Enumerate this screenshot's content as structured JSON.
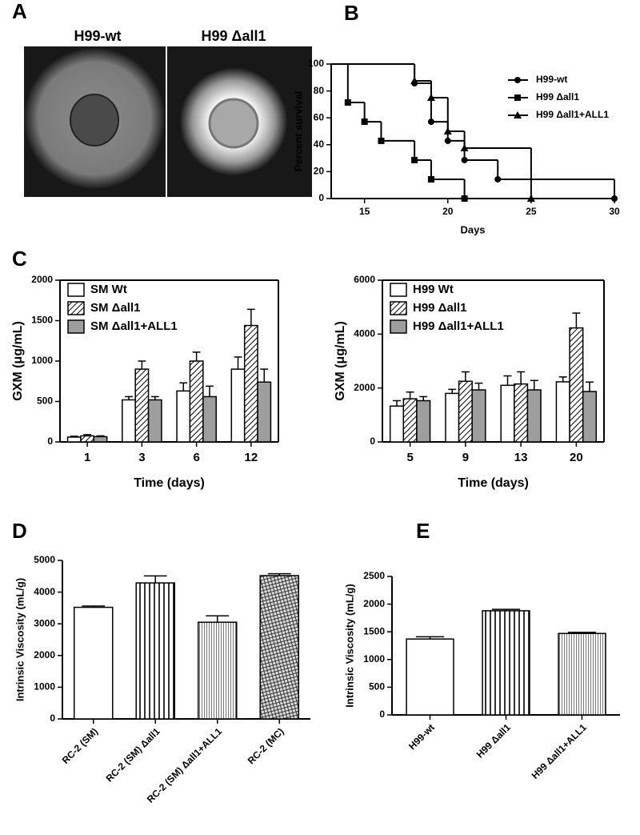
{
  "panel_a": {
    "letter": "A",
    "labels": [
      "H99-wt",
      "H99 Δall1"
    ]
  },
  "chart_data": [
    {
      "type": "step",
      "panel_label": "B",
      "xlabel": "Days",
      "ylabel": "Percent survival",
      "xlim": [
        13,
        30
      ],
      "xticks": [
        15,
        20,
        25,
        30
      ],
      "ylim": [
        0,
        100
      ],
      "yticks": [
        0,
        20,
        40,
        60,
        80,
        100
      ],
      "legend": "upper right",
      "series": [
        {
          "name": "H99-wt",
          "marker": "circle",
          "color": "#000000",
          "x": [
            13,
            18,
            19,
            20,
            21,
            23,
            30
          ],
          "values": [
            100,
            85.7,
            57.1,
            42.9,
            28.6,
            14.3,
            0
          ]
        },
        {
          "name": "H99 Δall1",
          "marker": "square",
          "color": "#000000",
          "x": [
            13,
            14,
            15,
            16,
            18,
            19,
            21
          ],
          "values": [
            100,
            71.4,
            57.1,
            42.9,
            28.6,
            14.3,
            0
          ]
        },
        {
          "name": "H99 Δall1+ALL1",
          "marker": "triangle",
          "color": "#000000",
          "x": [
            13,
            18,
            19,
            20,
            21,
            25
          ],
          "values": [
            100,
            87.5,
            75,
            50,
            37.5,
            0
          ]
        }
      ]
    },
    {
      "type": "bar",
      "panel_label": "C",
      "xlabel": "Time (days)",
      "ylabel": "GXM (μg/mL)",
      "categories": [
        "1",
        "3",
        "6",
        "12"
      ],
      "ylim": [
        0,
        2000
      ],
      "yticks": [
        0,
        500,
        1000,
        1500,
        2000
      ],
      "legend": "upper left",
      "series": [
        {
          "name": "SM Wt",
          "color": "#ffffff",
          "values": [
            60,
            520,
            630,
            900
          ],
          "errors": [
            10,
            40,
            100,
            150
          ]
        },
        {
          "name": "SM Δall1",
          "color": "#ffffff",
          "pattern": "diagonal",
          "values": [
            75,
            900,
            1000,
            1440
          ],
          "errors": [
            15,
            100,
            110,
            200
          ]
        },
        {
          "name": "SM Δall1+ALL1",
          "color": "#9e9e9e",
          "values": [
            65,
            520,
            560,
            740
          ],
          "errors": [
            10,
            40,
            130,
            160
          ]
        }
      ]
    },
    {
      "type": "bar",
      "xlabel": "Time (days)",
      "ylabel": "GXM (μg/mL)",
      "categories": [
        "5",
        "9",
        "13",
        "20"
      ],
      "ylim": [
        0,
        6000
      ],
      "yticks": [
        0,
        2000,
        4000,
        6000
      ],
      "legend": "upper left",
      "series": [
        {
          "name": "H99 Wt",
          "color": "#ffffff",
          "values": [
            1330,
            1800,
            2100,
            2230
          ],
          "errors": [
            200,
            150,
            350,
            180
          ]
        },
        {
          "name": "H99 Δall1",
          "color": "#ffffff",
          "pattern": "diagonal",
          "values": [
            1600,
            2250,
            2150,
            4230
          ],
          "errors": [
            250,
            350,
            450,
            550
          ]
        },
        {
          "name": "H99 Δall1+ALL1",
          "color": "#9e9e9e",
          "values": [
            1530,
            1930,
            1930,
            1870
          ],
          "errors": [
            150,
            250,
            350,
            350
          ]
        }
      ]
    },
    {
      "type": "bar",
      "panel_label": "D",
      "ylabel": "Intrinsic Viscosity (mL/g)",
      "categories": [
        "RC-2 (SM)",
        "RC-2 (SM) Δall1",
        "RC-2 (SM) Δall1+ALL1",
        "RC-2 (MC)"
      ],
      "values": [
        3520,
        4290,
        3050,
        4520
      ],
      "errors": [
        40,
        220,
        200,
        60
      ],
      "color": "#ffffff",
      "patterns": [
        "solid",
        "vertical-wide",
        "vertical-fine",
        "crosshatch"
      ],
      "ylim": [
        0,
        5000
      ],
      "yticks": [
        0,
        1000,
        2000,
        3000,
        4000,
        5000
      ],
      "rotate_labels": true
    },
    {
      "type": "bar",
      "panel_label": "E",
      "ylabel": "Intrinsic Viscosity (mL/g)",
      "categories": [
        "H99-wt",
        "H99 Δall1",
        "H99 Δall1+ALL1"
      ],
      "values": [
        1370,
        1880,
        1470
      ],
      "errors": [
        40,
        25,
        20
      ],
      "color": "#ffffff",
      "patterns": [
        "solid",
        "vertical-wide",
        "vertical-fine"
      ],
      "ylim": [
        0,
        2500
      ],
      "yticks": [
        0,
        500,
        1000,
        1500,
        2000,
        2500
      ],
      "rotate_labels": true
    }
  ]
}
